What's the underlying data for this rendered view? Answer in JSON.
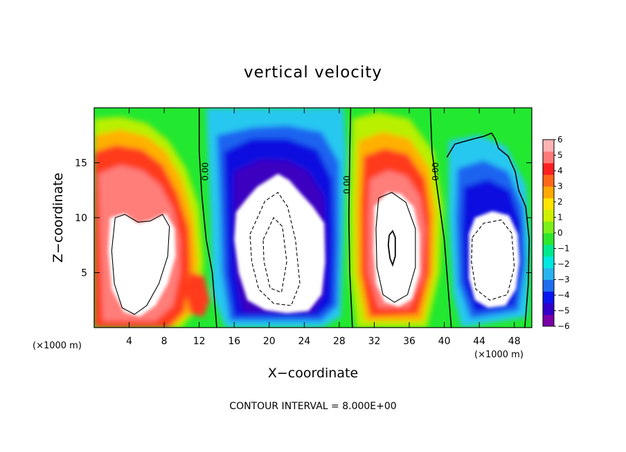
{
  "chart_data": {
    "type": "heatmap",
    "title": "vertical velocity",
    "xlabel": "X−coordinate",
    "ylabel": "Z−coordinate",
    "x_unit_label": "(×1000 m)",
    "z_unit_label": "(×1000 m)",
    "footer": "CONTOUR INTERVAL = 8.000E+00",
    "xlim": [
      0,
      50
    ],
    "ylim": [
      0,
      20
    ],
    "x_ticks": [
      4,
      8,
      12,
      16,
      20,
      24,
      28,
      32,
      36,
      40,
      44,
      48
    ],
    "x_tick_labels": [
      "4",
      "8",
      "12",
      "16",
      "20",
      "24",
      "28",
      "32",
      "36",
      "40",
      "44",
      "48"
    ],
    "y_ticks": [
      5,
      10,
      15
    ],
    "y_tick_labels": [
      "5",
      "10",
      "15"
    ],
    "colorbar": {
      "range": [
        -6,
        6
      ],
      "ticks": [
        6,
        5,
        4,
        3,
        2,
        1,
        0,
        -1,
        -2,
        -3,
        -4,
        -5,
        -6
      ],
      "tick_labels": [
        "6",
        "5",
        "4",
        "3",
        "2",
        "1",
        "0",
        "−1",
        "−2",
        "−3",
        "−4",
        "−5",
        "−6"
      ],
      "colors": [
        "#7a00a8",
        "#3200c8",
        "#0a14f0",
        "#1e6ef0",
        "#28b4f0",
        "#00e8e0",
        "#00e890",
        "#2ce82c",
        "#7cf01a",
        "#cef000",
        "#ffe400",
        "#ffa800",
        "#ff6818",
        "#ff2020",
        "#ff7a78",
        "#ffb4b4"
      ]
    },
    "zero_contour_labels": [
      {
        "x": 13.0,
        "z": 14.2,
        "text": "0.00"
      },
      {
        "x": 29.2,
        "z": 13.0,
        "text": "0.00"
      },
      {
        "x": 39.3,
        "z": 14.2,
        "text": "0.00"
      }
    ],
    "cells": [
      {
        "x": 5.2,
        "z": 9.0,
        "sign": "up"
      },
      {
        "x": 21.8,
        "z": 8.5,
        "sign": "down"
      },
      {
        "x": 34.2,
        "z": 8.2,
        "sign": "up"
      },
      {
        "x": 45.5,
        "z": 6.5,
        "sign": "down"
      }
    ]
  }
}
